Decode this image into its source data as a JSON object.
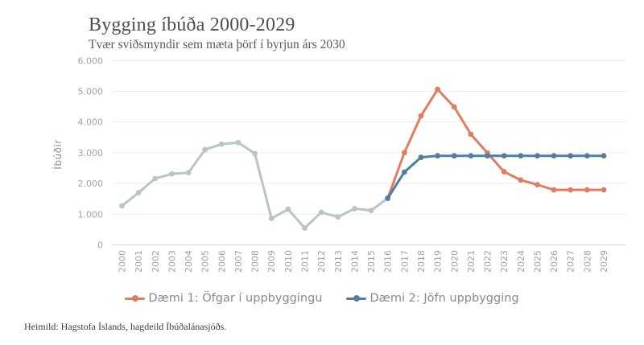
{
  "chart_data": {
    "type": "line",
    "title": "Bygging íbúða 2000-2029",
    "subtitle": "Tvær sviðsmyndir sem mæta þörf í byrjun árs 2030",
    "ylabel": "Íbúðir",
    "source": "Heimild: Hagstofa Íslands, hagdeild Íbúðalánasjóðs.",
    "x": [
      2000,
      2001,
      2002,
      2003,
      2004,
      2005,
      2006,
      2007,
      2008,
      2009,
      2010,
      2011,
      2012,
      2013,
      2014,
      2015,
      2016,
      2017,
      2018,
      2019,
      2020,
      2021,
      2022,
      2023,
      2024,
      2025,
      2026,
      2027,
      2028,
      2029
    ],
    "ylim": [
      0,
      6000
    ],
    "ytick_labels": [
      "0",
      "1.000",
      "2.000",
      "3.000",
      "4.000",
      "5.000",
      "6.000"
    ],
    "grid": true,
    "legend_position": "bottom",
    "colors": {
      "grid": "#ececec",
      "axis": "#d8d8d8",
      "tick_text": "#a2a2a2"
    },
    "series": [
      {
        "id": "historical",
        "name": "",
        "color": "#b9c4c8",
        "x_start": 2000,
        "values": [
          1270,
          1700,
          2160,
          2310,
          2350,
          3100,
          3280,
          3330,
          2970,
          860,
          1160,
          550,
          1060,
          910,
          1180,
          1120,
          1520
        ]
      },
      {
        "id": "daemi1",
        "name": "Dæmi 1: Öfgar í uppbyggingu",
        "color": "#e07d60",
        "x_start": 2016,
        "values": [
          1520,
          3000,
          4200,
          5060,
          4490,
          3600,
          2990,
          2380,
          2110,
          1960,
          1790,
          1790,
          1790,
          1790
        ]
      },
      {
        "id": "daemi2",
        "name": "Dæmi 2: Jöfn uppbygging",
        "color": "#4d7fa6",
        "x_start": 2016,
        "values": [
          1520,
          2370,
          2850,
          2900,
          2900,
          2900,
          2900,
          2900,
          2900,
          2900,
          2900,
          2900,
          2900,
          2900
        ]
      }
    ]
  }
}
